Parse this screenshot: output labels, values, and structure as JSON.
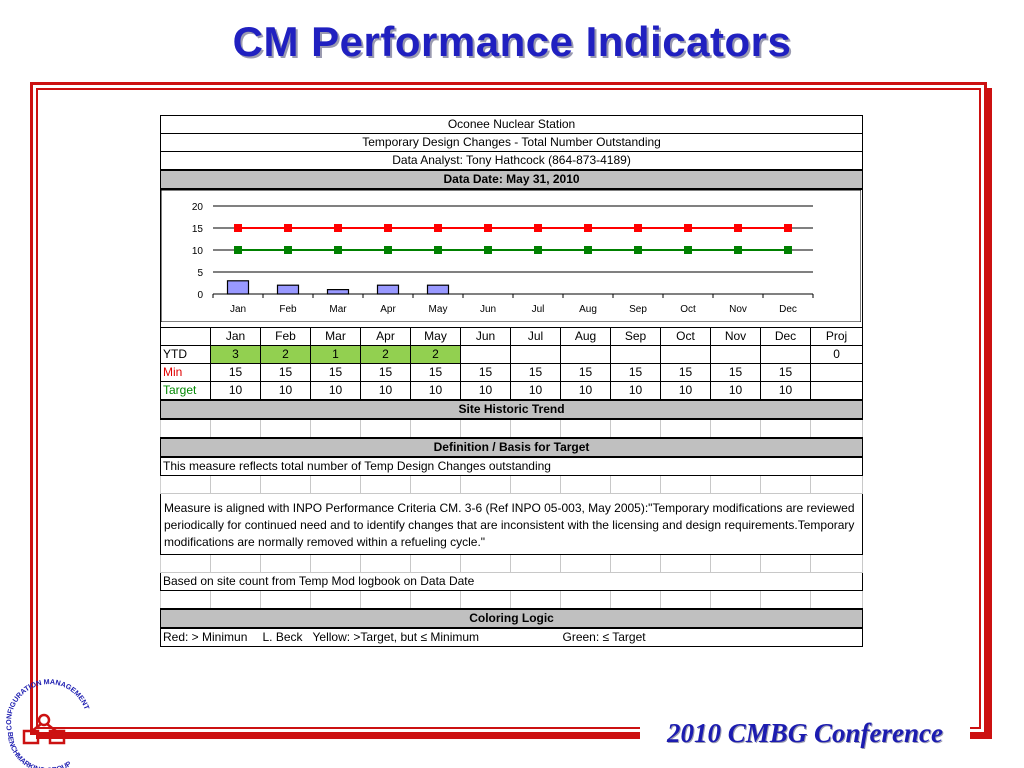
{
  "slide": {
    "title": "CM Performance Indicators",
    "footer": "2010 CMBG Conference"
  },
  "logo": {
    "top_text": "CONFIGURATION MANAGEMENT",
    "bottom_text": "BENCHMARKING GROUP"
  },
  "header": {
    "station": "Oconee Nuclear Station",
    "indicator": "Temporary Design Changes - Total Number Outstanding",
    "analyst": "Data Analyst: Tony Hathcock (864-873-4189)",
    "data_date": "Data Date:  May 31, 2010"
  },
  "chart_data": {
    "type": "bar",
    "categories": [
      "Jan",
      "Feb",
      "Mar",
      "Apr",
      "May",
      "Jun",
      "Jul",
      "Aug",
      "Sep",
      "Oct",
      "Nov",
      "Dec"
    ],
    "ylim": [
      0,
      20
    ],
    "yticks": [
      "0",
      "5",
      "10",
      "15",
      "20"
    ],
    "series": [
      {
        "kind": "bar",
        "color": "#9999ff",
        "values": [
          3,
          2,
          1,
          2,
          2,
          null,
          null,
          null,
          null,
          null,
          null,
          null
        ]
      },
      {
        "kind": "line",
        "color": "#ff0000",
        "values": [
          15,
          15,
          15,
          15,
          15,
          15,
          15,
          15,
          15,
          15,
          15,
          15
        ]
      },
      {
        "kind": "line",
        "color": "#008000",
        "values": [
          10,
          10,
          10,
          10,
          10,
          10,
          10,
          10,
          10,
          10,
          10,
          10
        ]
      }
    ]
  },
  "table": {
    "months": [
      "Jan",
      "Feb",
      "Mar",
      "Apr",
      "May",
      "Jun",
      "Jul",
      "Aug",
      "Sep",
      "Oct",
      "Nov",
      "Dec"
    ],
    "proj_label": "Proj",
    "ytd": {
      "label": "YTD",
      "values": [
        "3",
        "2",
        "1",
        "2",
        "2",
        "",
        "",
        "",
        "",
        "",
        "",
        ""
      ],
      "proj": "0"
    },
    "min": {
      "label": "Min",
      "values": [
        "15",
        "15",
        "15",
        "15",
        "15",
        "15",
        "15",
        "15",
        "15",
        "15",
        "15",
        "15"
      ],
      "proj": ""
    },
    "target": {
      "label": "Target",
      "values": [
        "10",
        "10",
        "10",
        "10",
        "10",
        "10",
        "10",
        "10",
        "10",
        "10",
        "10",
        "10"
      ],
      "proj": ""
    }
  },
  "sections": {
    "historic": "Site Historic Trend",
    "definition": "Definition / Basis for Target",
    "coloring": "Coloring Logic"
  },
  "definition": {
    "line1": "This measure reflects total number of Temp Design Changes outstanding",
    "paragraph": "Measure is aligned with INPO Performance Criteria CM. 3-6 (Ref INPO 05-003, May 2005):\"Temporary modifications are reviewed periodically for continued need and to identify changes that are inconsistent with the licensing and design requirements.Temporary modifications are normally removed within a refueling cycle.\"",
    "basis": "Based on site count from Temp Mod logbook on Data Date"
  },
  "coloring": {
    "red": "Red: > Minimun",
    "owner": "L. Beck",
    "yellow": "Yellow: >Target,  but ≤ Minimum",
    "green": "Green: ≤ Target"
  }
}
